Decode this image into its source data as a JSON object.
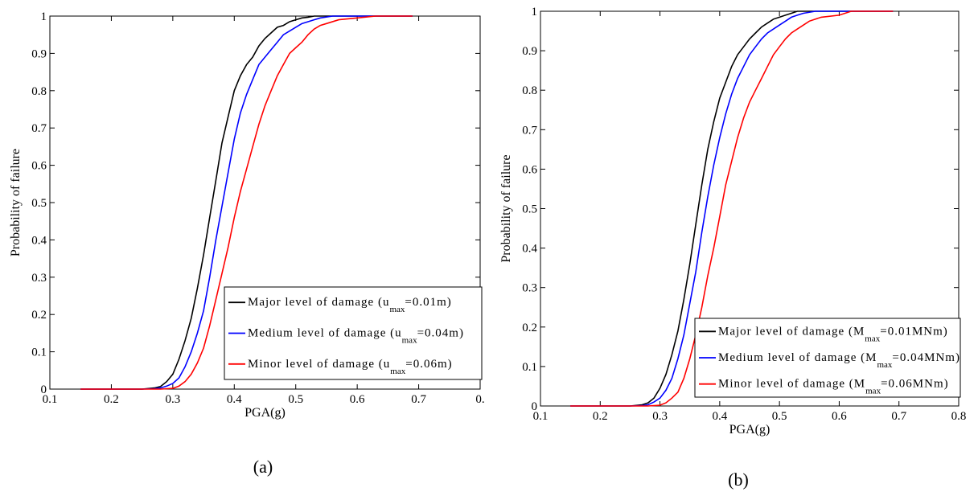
{
  "colors": {
    "black": "#000000",
    "blue": "#0000ff",
    "red": "#ff0000"
  },
  "chart_data": [
    {
      "type": "line",
      "panel_label": "(a)",
      "xlabel": "PGA(g)",
      "ylabel": "Probability of failure",
      "xlim": [
        0.1,
        0.8
      ],
      "ylim": [
        0,
        1
      ],
      "x_tick_labels": [
        "0.1",
        "0.2",
        "0.3",
        "0.4",
        "0.5",
        "0.6",
        "0.7",
        "0."
      ],
      "y_tick_labels": [
        "0",
        "0.1",
        "0.2",
        "0.3",
        "0.4",
        "0.5",
        "0.6",
        "0.7",
        "0.8",
        "0.9",
        "1"
      ],
      "grid": false,
      "legend_position": "bottom-right",
      "series": [
        {
          "name": "Major level of damage (u",
          "name_sub": "max",
          "name_suffix": "=0.01m)",
          "color": "#000000",
          "x": [
            0.15,
            0.2,
            0.25,
            0.27,
            0.28,
            0.29,
            0.3,
            0.31,
            0.32,
            0.33,
            0.34,
            0.35,
            0.36,
            0.37,
            0.38,
            0.39,
            0.4,
            0.41,
            0.42,
            0.43,
            0.44,
            0.45,
            0.46,
            0.47,
            0.48,
            0.49,
            0.5,
            0.51,
            0.52,
            0.53,
            0.55,
            0.6,
            0.65,
            0.69
          ],
          "y": [
            0,
            0,
            0,
            0.003,
            0.007,
            0.02,
            0.04,
            0.08,
            0.13,
            0.19,
            0.27,
            0.36,
            0.46,
            0.56,
            0.66,
            0.73,
            0.8,
            0.84,
            0.87,
            0.89,
            0.92,
            0.94,
            0.955,
            0.97,
            0.975,
            0.985,
            0.99,
            0.995,
            0.997,
            1,
            1,
            1,
            1,
            1
          ]
        },
        {
          "name": "Medium level of damage (u",
          "name_sub": "max",
          "name_suffix": "=0.04m)",
          "color": "#0000ff",
          "x": [
            0.15,
            0.2,
            0.25,
            0.27,
            0.28,
            0.29,
            0.3,
            0.31,
            0.32,
            0.33,
            0.34,
            0.35,
            0.36,
            0.37,
            0.38,
            0.39,
            0.4,
            0.41,
            0.42,
            0.43,
            0.44,
            0.45,
            0.46,
            0.47,
            0.48,
            0.49,
            0.5,
            0.51,
            0.52,
            0.53,
            0.54,
            0.56,
            0.6,
            0.65,
            0.69
          ],
          "y": [
            0,
            0,
            0,
            0.001,
            0.003,
            0.008,
            0.015,
            0.03,
            0.06,
            0.1,
            0.15,
            0.21,
            0.3,
            0.4,
            0.49,
            0.58,
            0.67,
            0.74,
            0.79,
            0.83,
            0.87,
            0.89,
            0.91,
            0.93,
            0.95,
            0.96,
            0.97,
            0.98,
            0.985,
            0.99,
            0.995,
            1,
            1,
            1,
            1
          ]
        },
        {
          "name": "Minor level of damage (u",
          "name_sub": "max",
          "name_suffix": "=0.06m)",
          "color": "#ff0000",
          "x": [
            0.15,
            0.2,
            0.25,
            0.28,
            0.3,
            0.31,
            0.32,
            0.33,
            0.34,
            0.35,
            0.36,
            0.37,
            0.38,
            0.39,
            0.4,
            0.41,
            0.42,
            0.43,
            0.44,
            0.45,
            0.46,
            0.47,
            0.48,
            0.49,
            0.5,
            0.51,
            0.52,
            0.53,
            0.54,
            0.55,
            0.57,
            0.6,
            0.63,
            0.65,
            0.69
          ],
          "y": [
            0,
            0,
            0,
            0,
            0.002,
            0.008,
            0.02,
            0.04,
            0.07,
            0.11,
            0.17,
            0.24,
            0.31,
            0.38,
            0.46,
            0.53,
            0.59,
            0.65,
            0.71,
            0.76,
            0.8,
            0.84,
            0.87,
            0.9,
            0.915,
            0.93,
            0.95,
            0.965,
            0.975,
            0.98,
            0.99,
            0.995,
            1,
            1,
            1
          ]
        }
      ]
    },
    {
      "type": "line",
      "panel_label": "(b)",
      "xlabel": "PGA(g)",
      "ylabel": "Probability of failure",
      "xlim": [
        0.1,
        0.8
      ],
      "ylim": [
        0,
        1
      ],
      "x_tick_labels": [
        "0.1",
        "0.2",
        "0.3",
        "0.4",
        "0.5",
        "0.6",
        "0.7",
        "0.8"
      ],
      "y_tick_labels": [
        "0",
        "0.1",
        "0.2",
        "0.3",
        "0.4",
        "0.5",
        "0.6",
        "0.7",
        "0.8",
        "0.9",
        "1"
      ],
      "grid": false,
      "legend_position": "bottom-right",
      "series": [
        {
          "name": "Major level of damage (M",
          "name_sub": "max",
          "name_suffix": "=0.01MNm)",
          "color": "#000000",
          "x": [
            0.15,
            0.2,
            0.25,
            0.27,
            0.28,
            0.29,
            0.3,
            0.31,
            0.32,
            0.33,
            0.34,
            0.35,
            0.36,
            0.37,
            0.38,
            0.39,
            0.4,
            0.41,
            0.42,
            0.43,
            0.44,
            0.45,
            0.46,
            0.47,
            0.48,
            0.49,
            0.5,
            0.51,
            0.52,
            0.53,
            0.55,
            0.6,
            0.65,
            0.69
          ],
          "y": [
            0,
            0,
            0,
            0.003,
            0.008,
            0.02,
            0.045,
            0.08,
            0.13,
            0.19,
            0.27,
            0.36,
            0.46,
            0.56,
            0.65,
            0.72,
            0.78,
            0.82,
            0.86,
            0.89,
            0.91,
            0.93,
            0.945,
            0.96,
            0.97,
            0.98,
            0.985,
            0.99,
            0.995,
            1,
            1,
            1,
            1,
            1
          ]
        },
        {
          "name": "Medium level of damage (M",
          "name_sub": "max",
          "name_suffix": "=0.04MNm)",
          "color": "#0000ff",
          "x": [
            0.15,
            0.2,
            0.25,
            0.27,
            0.28,
            0.29,
            0.3,
            0.31,
            0.32,
            0.33,
            0.34,
            0.35,
            0.36,
            0.37,
            0.38,
            0.39,
            0.4,
            0.41,
            0.42,
            0.43,
            0.44,
            0.45,
            0.46,
            0.47,
            0.48,
            0.49,
            0.5,
            0.51,
            0.52,
            0.53,
            0.54,
            0.56,
            0.6,
            0.65,
            0.69
          ],
          "y": [
            0,
            0,
            0,
            0.001,
            0.003,
            0.01,
            0.02,
            0.04,
            0.07,
            0.12,
            0.18,
            0.26,
            0.34,
            0.44,
            0.53,
            0.61,
            0.68,
            0.74,
            0.79,
            0.83,
            0.86,
            0.89,
            0.91,
            0.93,
            0.945,
            0.955,
            0.965,
            0.975,
            0.985,
            0.99,
            0.995,
            1,
            1,
            1,
            1
          ]
        },
        {
          "name": "Minor level of damage (M",
          "name_sub": "max",
          "name_suffix": "=0.06MNm)",
          "color": "#ff0000",
          "x": [
            0.15,
            0.2,
            0.25,
            0.28,
            0.3,
            0.31,
            0.32,
            0.33,
            0.34,
            0.35,
            0.36,
            0.37,
            0.38,
            0.39,
            0.4,
            0.41,
            0.42,
            0.43,
            0.44,
            0.45,
            0.46,
            0.47,
            0.48,
            0.49,
            0.5,
            0.51,
            0.52,
            0.53,
            0.54,
            0.55,
            0.57,
            0.6,
            0.62,
            0.65,
            0.69
          ],
          "y": [
            0,
            0,
            0,
            0,
            0.002,
            0.008,
            0.02,
            0.035,
            0.07,
            0.12,
            0.18,
            0.25,
            0.33,
            0.4,
            0.48,
            0.56,
            0.62,
            0.68,
            0.73,
            0.77,
            0.8,
            0.83,
            0.86,
            0.89,
            0.91,
            0.93,
            0.945,
            0.955,
            0.965,
            0.975,
            0.985,
            0.99,
            1,
            1,
            1
          ]
        }
      ]
    }
  ]
}
